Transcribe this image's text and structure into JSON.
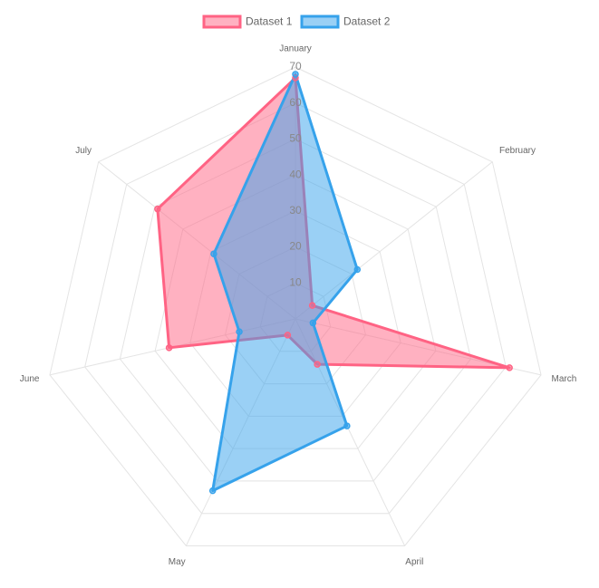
{
  "chart_data": {
    "type": "radar",
    "categories": [
      "January",
      "February",
      "March",
      "April",
      "May",
      "June",
      "July"
    ],
    "series": [
      {
        "name": "Dataset 1",
        "color": "#ff6384",
        "values": [
          67,
          6,
          61,
          14,
          5,
          36,
          49
        ]
      },
      {
        "name": "Dataset 2",
        "color": "#36a2eb",
        "values": [
          68,
          22,
          5,
          33,
          53,
          16,
          29
        ]
      }
    ],
    "ylim": [
      0,
      70
    ],
    "yticks": [
      10,
      20,
      30,
      40,
      50,
      60,
      70
    ],
    "grid": true,
    "legend": "top"
  }
}
